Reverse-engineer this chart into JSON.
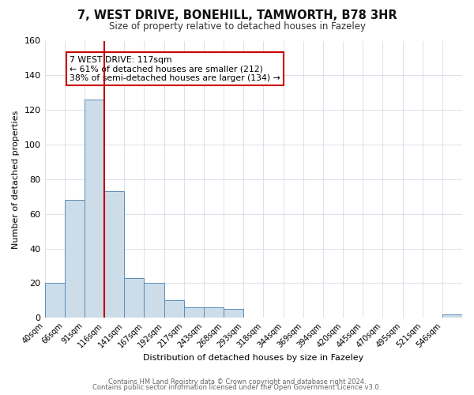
{
  "title": "7, WEST DRIVE, BONEHILL, TAMWORTH, B78 3HR",
  "subtitle": "Size of property relative to detached houses in Fazeley",
  "xlabel": "Distribution of detached houses by size in Fazeley",
  "ylabel": "Number of detached properties",
  "bin_labels": [
    "40sqm",
    "66sqm",
    "91sqm",
    "116sqm",
    "141sqm",
    "167sqm",
    "192sqm",
    "217sqm",
    "243sqm",
    "268sqm",
    "293sqm",
    "318sqm",
    "344sqm",
    "369sqm",
    "394sqm",
    "420sqm",
    "445sqm",
    "470sqm",
    "495sqm",
    "521sqm",
    "546sqm"
  ],
  "bar_values": [
    20,
    68,
    126,
    73,
    23,
    20,
    10,
    6,
    6,
    5,
    0,
    0,
    0,
    0,
    0,
    0,
    0,
    0,
    0,
    0,
    2
  ],
  "bar_color": "#ccdce8",
  "bar_edge_color": "#5b8db8",
  "ylim": [
    0,
    160
  ],
  "yticks": [
    0,
    20,
    40,
    60,
    80,
    100,
    120,
    140,
    160
  ],
  "property_line_x": 3,
  "property_line_color": "#bb0000",
  "annotation_title": "7 WEST DRIVE: 117sqm",
  "annotation_line1": "← 61% of detached houses are smaller (212)",
  "annotation_line2": "38% of semi-detached houses are larger (134) →",
  "annotation_box_color": "#ffffff",
  "annotation_box_edge": "#cc0000",
  "footer_line1": "Contains HM Land Registry data © Crown copyright and database right 2024.",
  "footer_line2": "Contains public sector information licensed under the Open Government Licence v3.0.",
  "background_color": "#ffffff",
  "grid_color": "#d4dde6"
}
